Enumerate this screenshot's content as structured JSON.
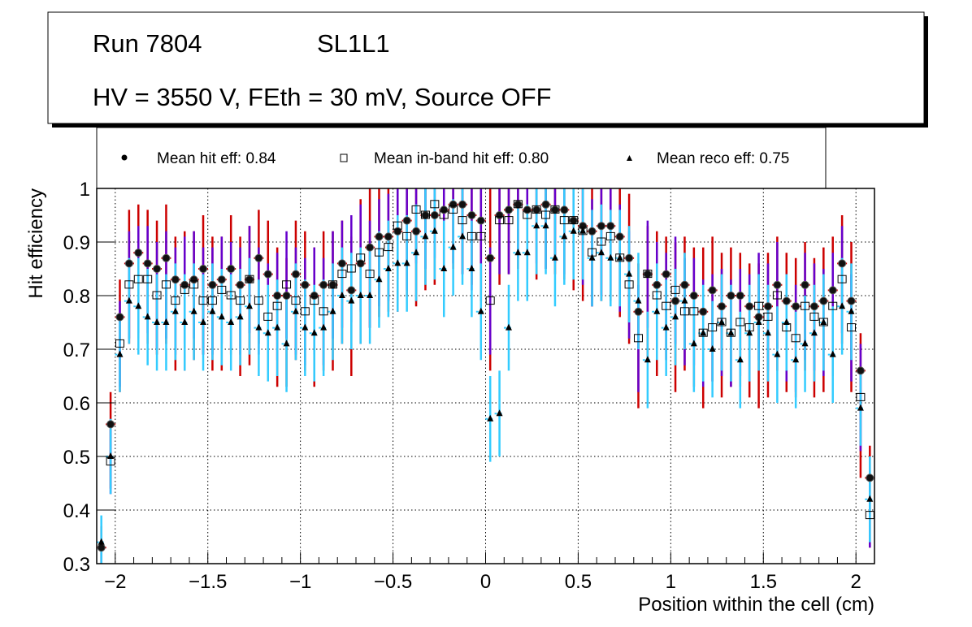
{
  "title_box": {
    "line1_left": "Run 7804",
    "line1_right": "SL1L1",
    "line2": "HV = 3550 V, FEth = 30 mV, Source OFF"
  },
  "legend": {
    "items": [
      {
        "marker": "circle",
        "label": "Mean hit  eff: 0.84"
      },
      {
        "marker": "open-square",
        "label": "Mean in-band hit eff: 0.80"
      },
      {
        "marker": "triangle",
        "label": "Mean reco eff: 0.75"
      }
    ]
  },
  "colors": {
    "hit_err": "#cc0000",
    "inband_err": "#6600cc",
    "reco_err": "#33ccff",
    "marker": "#000000"
  },
  "chart_data": {
    "type": "scatter",
    "title": "",
    "xlabel": "Position within the cell (cm)",
    "ylabel": "Hit efficiency",
    "xlim": [
      -2.1,
      2.1
    ],
    "ylim": [
      0.3,
      1.0
    ],
    "xticks": [
      -2,
      -1.5,
      -1,
      -0.5,
      0,
      0.5,
      1,
      1.5,
      2
    ],
    "xtick_labels": [
      "−2",
      "−1.5",
      "−1",
      "−0.5",
      "0",
      "0.5",
      "1",
      "1.5",
      "2"
    ],
    "yticks": [
      0.3,
      0.4,
      0.5,
      0.6,
      0.7,
      0.8,
      0.9,
      1.0
    ],
    "ytick_labels": [
      "0.3",
      "0.4",
      "0.5",
      "0.6",
      "0.7",
      "0.8",
      "0.9",
      "1"
    ],
    "grid": true,
    "legend_position": "top",
    "x": [
      -2.075,
      -2.025,
      -1.975,
      -1.925,
      -1.875,
      -1.825,
      -1.775,
      -1.725,
      -1.675,
      -1.625,
      -1.575,
      -1.525,
      -1.475,
      -1.425,
      -1.375,
      -1.325,
      -1.275,
      -1.225,
      -1.175,
      -1.125,
      -1.075,
      -1.025,
      -0.975,
      -0.925,
      -0.875,
      -0.825,
      -0.775,
      -0.725,
      -0.675,
      -0.625,
      -0.575,
      -0.525,
      -0.475,
      -0.425,
      -0.375,
      -0.325,
      -0.275,
      -0.225,
      -0.175,
      -0.125,
      -0.075,
      -0.025,
      0.025,
      0.075,
      0.125,
      0.175,
      0.225,
      0.275,
      0.325,
      0.375,
      0.425,
      0.475,
      0.525,
      0.575,
      0.625,
      0.675,
      0.725,
      0.775,
      0.825,
      0.875,
      0.925,
      0.975,
      1.025,
      1.075,
      1.125,
      1.175,
      1.225,
      1.275,
      1.325,
      1.375,
      1.425,
      1.475,
      1.525,
      1.575,
      1.625,
      1.675,
      1.725,
      1.775,
      1.825,
      1.875,
      1.925,
      1.975,
      2.025,
      2.075
    ],
    "series": [
      {
        "name": "Mean hit  eff: 0.84",
        "marker": "circle",
        "values": [
          0.33,
          0.56,
          0.76,
          0.86,
          0.88,
          0.86,
          0.85,
          0.87,
          0.83,
          0.82,
          0.83,
          0.85,
          0.82,
          0.83,
          0.85,
          0.82,
          0.83,
          0.87,
          0.84,
          0.8,
          0.8,
          0.84,
          0.82,
          0.8,
          0.82,
          0.82,
          0.86,
          0.81,
          0.86,
          0.89,
          0.91,
          0.91,
          0.92,
          0.94,
          0.92,
          0.95,
          0.95,
          0.96,
          0.97,
          0.97,
          0.95,
          0.94,
          0.87,
          0.95,
          0.96,
          0.97,
          0.96,
          0.96,
          0.97,
          0.96,
          0.96,
          0.94,
          0.93,
          0.92,
          0.93,
          0.93,
          0.91,
          0.87,
          0.77,
          0.84,
          0.82,
          0.84,
          0.79,
          0.82,
          0.8,
          0.77,
          0.81,
          0.78,
          0.8,
          0.8,
          0.78,
          0.76,
          0.78,
          0.82,
          0.79,
          0.78,
          0.82,
          0.78,
          0.79,
          0.81,
          0.86,
          0.79,
          0.66,
          0.46
        ],
        "err_low": [
          0.05,
          0.12,
          0.14,
          0.15,
          0.16,
          0.15,
          0.16,
          0.16,
          0.17,
          0.16,
          0.15,
          0.16,
          0.16,
          0.17,
          0.16,
          0.17,
          0.16,
          0.16,
          0.16,
          0.17,
          0.17,
          0.16,
          0.16,
          0.17,
          0.16,
          0.16,
          0.15,
          0.16,
          0.15,
          0.15,
          0.15,
          0.14,
          0.15,
          0.14,
          0.14,
          0.14,
          0.13,
          0.13,
          0.12,
          0.13,
          0.13,
          0.15,
          0.21,
          0.13,
          0.12,
          0.12,
          0.13,
          0.13,
          0.12,
          0.12,
          0.13,
          0.13,
          0.14,
          0.14,
          0.14,
          0.14,
          0.15,
          0.16,
          0.18,
          0.16,
          0.17,
          0.16,
          0.17,
          0.16,
          0.17,
          0.18,
          0.17,
          0.17,
          0.17,
          0.17,
          0.17,
          0.17,
          0.17,
          0.16,
          0.17,
          0.17,
          0.16,
          0.17,
          0.17,
          0.16,
          0.15,
          0.17,
          0.2,
          0.13
        ],
        "err_high": [
          0.04,
          0.06,
          0.07,
          0.1,
          0.09,
          0.1,
          0.09,
          0.1,
          0.08,
          0.1,
          0.09,
          0.1,
          0.09,
          0.08,
          0.1,
          0.09,
          0.1,
          0.09,
          0.1,
          0.09,
          0.07,
          0.1,
          0.1,
          0.09,
          0.1,
          0.1,
          0.08,
          0.1,
          0.12,
          0.13,
          0.1,
          0.09,
          0.08,
          0.06,
          0.08,
          0.05,
          0.05,
          0.04,
          0.03,
          0.03,
          0.05,
          0.06,
          0.13,
          0.05,
          0.04,
          0.03,
          0.04,
          0.04,
          0.03,
          0.04,
          0.04,
          0.06,
          0.07,
          0.08,
          0.07,
          0.07,
          0.09,
          0.12,
          0.09,
          0.09,
          0.1,
          0.07,
          0.11,
          0.09,
          0.09,
          0.12,
          0.1,
          0.1,
          0.09,
          0.08,
          0.08,
          0.1,
          0.1,
          0.09,
          0.09,
          0.09,
          0.08,
          0.09,
          0.1,
          0.1,
          0.09,
          0.11,
          0.07,
          0.06
        ]
      },
      {
        "name": "Mean in-band hit eff: 0.80",
        "marker": "open-square",
        "values": [
          0.26,
          0.49,
          0.71,
          0.82,
          0.83,
          0.83,
          0.8,
          0.82,
          0.79,
          0.81,
          0.82,
          0.79,
          0.79,
          0.81,
          0.8,
          0.79,
          0.83,
          0.79,
          0.76,
          0.78,
          0.82,
          0.79,
          0.77,
          0.79,
          0.77,
          0.82,
          0.84,
          0.85,
          0.87,
          0.84,
          0.88,
          0.89,
          0.93,
          0.91,
          0.96,
          0.95,
          0.97,
          0.95,
          0.96,
          0.94,
          0.91,
          0.91,
          0.79,
          0.94,
          0.94,
          0.97,
          0.95,
          0.96,
          0.95,
          0.96,
          0.94,
          0.94,
          0.92,
          0.88,
          0.9,
          0.91,
          0.87,
          0.82,
          0.72,
          0.84,
          0.8,
          0.78,
          0.81,
          0.77,
          0.77,
          0.73,
          0.74,
          0.75,
          0.73,
          0.75,
          0.74,
          0.78,
          0.76,
          0.8,
          0.74,
          0.72,
          0.78,
          0.76,
          0.75,
          0.78,
          0.83,
          0.74,
          0.61,
          0.39
        ],
        "err": [
          0.06,
          0.06,
          0.08,
          0.1,
          0.1,
          0.1,
          0.1,
          0.1,
          0.1,
          0.1,
          0.1,
          0.1,
          0.1,
          0.1,
          0.1,
          0.1,
          0.1,
          0.1,
          0.1,
          0.1,
          0.1,
          0.1,
          0.1,
          0.1,
          0.1,
          0.1,
          0.1,
          0.1,
          0.1,
          0.1,
          0.1,
          0.1,
          0.1,
          0.1,
          0.1,
          0.1,
          0.1,
          0.1,
          0.1,
          0.1,
          0.1,
          0.1,
          0.1,
          0.1,
          0.1,
          0.1,
          0.1,
          0.1,
          0.1,
          0.1,
          0.1,
          0.1,
          0.1,
          0.1,
          0.1,
          0.1,
          0.1,
          0.1,
          0.1,
          0.1,
          0.1,
          0.1,
          0.1,
          0.1,
          0.1,
          0.1,
          0.1,
          0.1,
          0.1,
          0.1,
          0.1,
          0.1,
          0.1,
          0.1,
          0.1,
          0.1,
          0.1,
          0.1,
          0.1,
          0.1,
          0.1,
          0.1,
          0.1,
          0.06
        ]
      },
      {
        "name": "Mean reco eff: 0.75",
        "marker": "triangle",
        "values": [
          0.34,
          0.5,
          0.69,
          0.79,
          0.78,
          0.76,
          0.75,
          0.75,
          0.77,
          0.75,
          0.77,
          0.75,
          0.77,
          0.76,
          0.75,
          0.76,
          0.78,
          0.74,
          0.73,
          0.74,
          0.71,
          0.77,
          0.74,
          0.73,
          0.74,
          0.77,
          0.8,
          0.79,
          0.8,
          0.8,
          0.83,
          0.85,
          0.86,
          0.86,
          0.88,
          0.91,
          0.92,
          0.85,
          0.89,
          0.91,
          0.85,
          0.77,
          0.57,
          0.58,
          0.74,
          0.88,
          0.88,
          0.93,
          0.93,
          0.87,
          0.91,
          0.92,
          0.92,
          0.87,
          0.88,
          0.87,
          0.87,
          0.84,
          0.79,
          0.68,
          0.77,
          0.74,
          0.76,
          0.79,
          0.71,
          0.73,
          0.7,
          0.75,
          0.73,
          0.68,
          0.73,
          0.75,
          0.73,
          0.69,
          0.75,
          0.68,
          0.71,
          0.73,
          0.75,
          0.69,
          0.78,
          0.77,
          0.59,
          0.42
        ],
        "err": [
          0.05,
          0.07,
          0.07,
          0.08,
          0.09,
          0.09,
          0.09,
          0.09,
          0.09,
          0.09,
          0.09,
          0.09,
          0.09,
          0.09,
          0.09,
          0.09,
          0.09,
          0.09,
          0.09,
          0.09,
          0.09,
          0.09,
          0.09,
          0.09,
          0.09,
          0.09,
          0.09,
          0.09,
          0.09,
          0.09,
          0.09,
          0.09,
          0.09,
          0.09,
          0.09,
          0.09,
          0.09,
          0.09,
          0.09,
          0.09,
          0.09,
          0.09,
          0.08,
          0.08,
          0.08,
          0.09,
          0.09,
          0.09,
          0.09,
          0.09,
          0.09,
          0.09,
          0.09,
          0.09,
          0.09,
          0.09,
          0.09,
          0.09,
          0.09,
          0.09,
          0.09,
          0.09,
          0.09,
          0.09,
          0.09,
          0.09,
          0.09,
          0.09,
          0.09,
          0.09,
          0.09,
          0.09,
          0.09,
          0.09,
          0.09,
          0.09,
          0.09,
          0.09,
          0.09,
          0.09,
          0.09,
          0.09,
          0.07,
          0.08
        ]
      }
    ]
  }
}
